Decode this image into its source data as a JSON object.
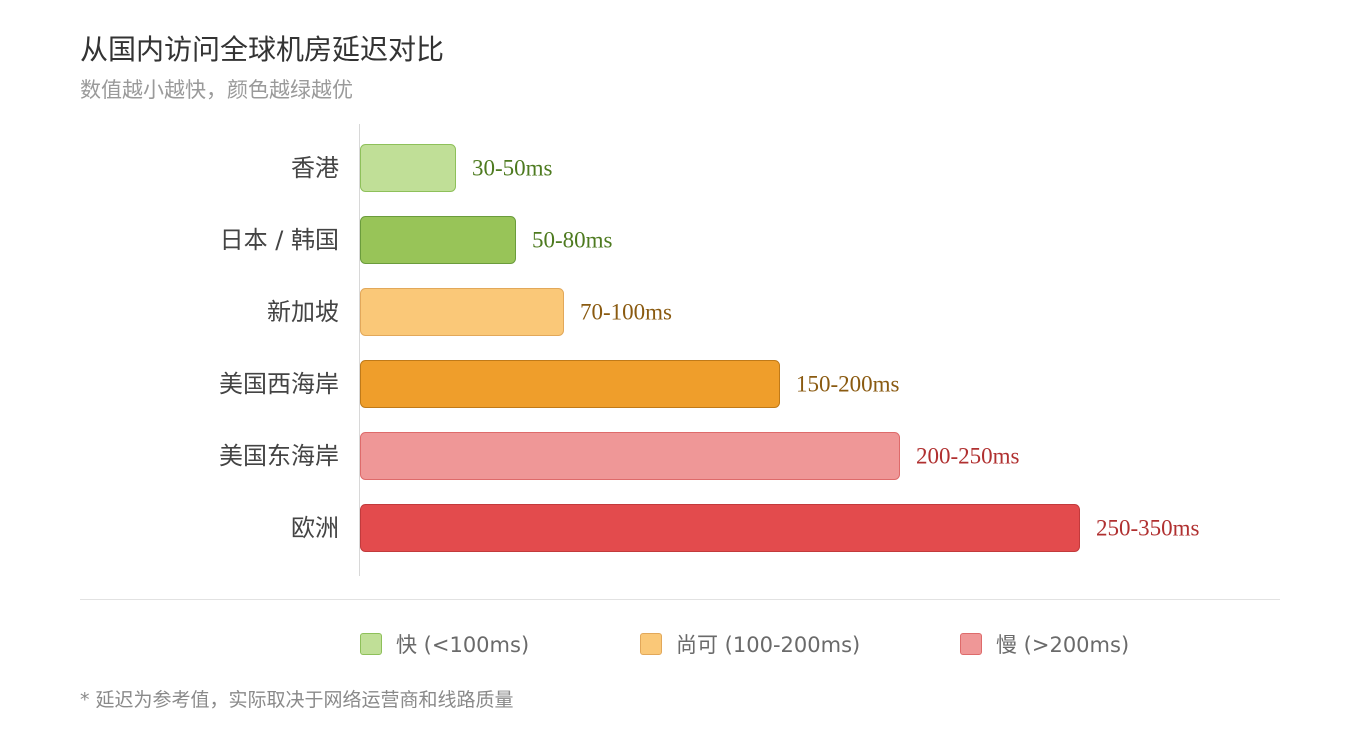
{
  "title": "从国内访问全球机房延迟对比",
  "subtitle": "数值越小越快，颜色越绿越优",
  "chart_data": {
    "type": "bar",
    "orientation": "horizontal",
    "categories": [
      "香港",
      "日本 / 韩国",
      "新加坡",
      "美国西海岸",
      "美国东海岸",
      "欧洲"
    ],
    "values": [
      40,
      65,
      85,
      175,
      225,
      300
    ],
    "value_labels": [
      "30-50ms",
      "50-80ms",
      "70-100ms",
      "150-200ms",
      "200-250ms",
      "250-350ms"
    ],
    "xlim": [
      0,
      300
    ],
    "grid": false,
    "legend_position": "bottom-center",
    "colors": {
      "fill": [
        "#c0df97",
        "#98c458",
        "#fac878",
        "#ef9e2b",
        "#ef9797",
        "#e34b4d"
      ],
      "stroke": [
        "#8ec05a",
        "#6b9c3c",
        "#e2a85a",
        "#c07a18",
        "#de6b6b",
        "#c23a3c"
      ],
      "text": [
        "#4d7a1f",
        "#4d7a1f",
        "#8a5a10",
        "#8a5a10",
        "#b03030",
        "#b03030"
      ]
    }
  },
  "legend": [
    {
      "label": "快 (<100ms)",
      "fill": "#c0df97",
      "stroke": "#8ec05a"
    },
    {
      "label": "尚可 (100-200ms)",
      "fill": "#fac878",
      "stroke": "#e2a85a"
    },
    {
      "label": "慢 (>200ms)",
      "fill": "#ef9797",
      "stroke": "#de6b6b"
    }
  ],
  "footnote": "* 延迟为参考值，实际取决于网络运营商和线路质量"
}
